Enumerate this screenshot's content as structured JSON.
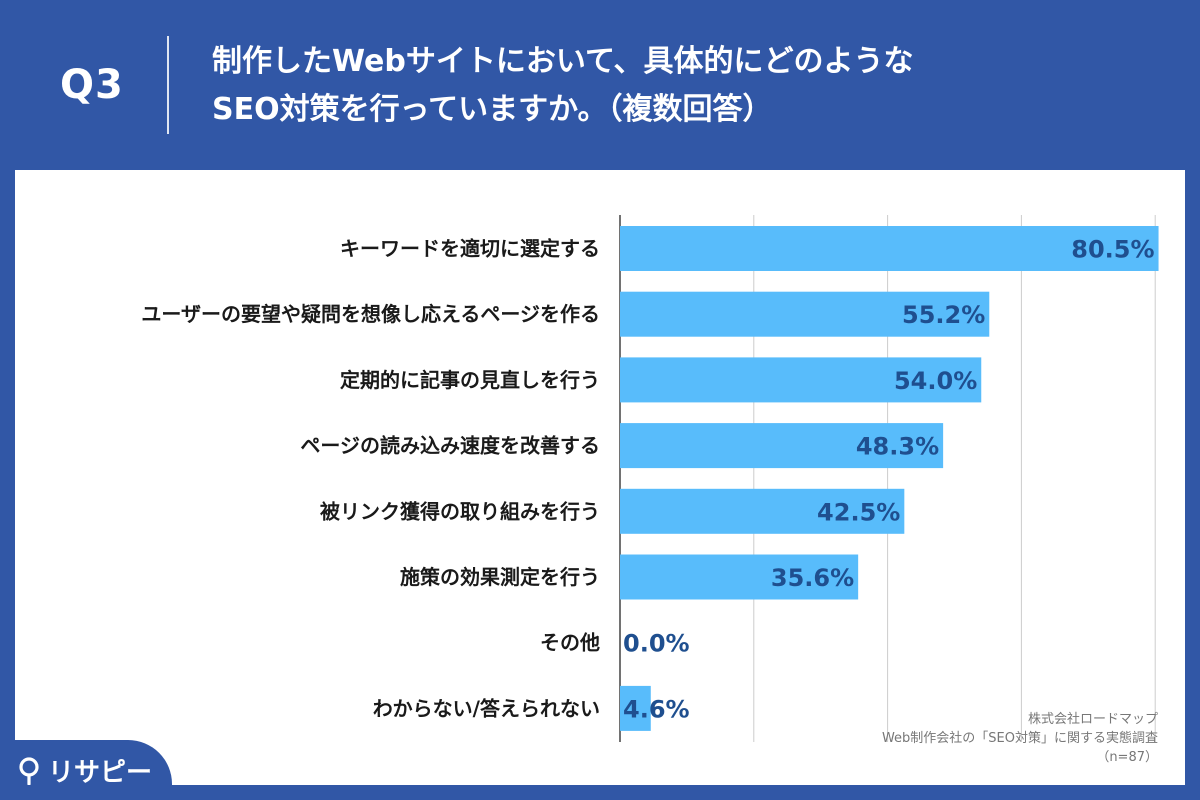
{
  "header": {
    "question_no": "Q3",
    "title_line1": "制作したWebサイトにおいて、具体的にどのような",
    "title_line2": "SEO対策を行っていますか。（複数回答）"
  },
  "chart_data": {
    "type": "bar",
    "orientation": "horizontal",
    "categories": [
      "キーワードを適切に選定する",
      "ユーザーの要望や疑問を想像し応えるページを作る",
      "定期的に記事の見直しを行う",
      "ページの読み込み速度を改善する",
      "被リンク獲得の取り組みを行う",
      "施策の効果測定を行う",
      "その他",
      "わからない/答えられない"
    ],
    "values": [
      80.5,
      55.2,
      54.0,
      48.3,
      42.5,
      35.6,
      0.0,
      4.6
    ],
    "value_labels": [
      "80.5%",
      "55.2%",
      "54.0%",
      "48.3%",
      "42.5%",
      "35.6%",
      "0.0%",
      "4.6%"
    ],
    "xlim": [
      0,
      80
    ],
    "grid": true,
    "bar_color": "#58bcfb",
    "value_label_color": "#1f4f8f",
    "title": "",
    "xlabel": "",
    "ylabel": ""
  },
  "source": {
    "line1": "株式会社ロードマップ",
    "line2": "Web制作会社の「SEO対策」に関する実態調査",
    "line3": "（n=87）"
  },
  "brand": {
    "logo_text": "リサピー",
    "logo_icon": "location-pin-icon"
  },
  "colors": {
    "background": "#3157a6",
    "panel": "#ffffff"
  }
}
